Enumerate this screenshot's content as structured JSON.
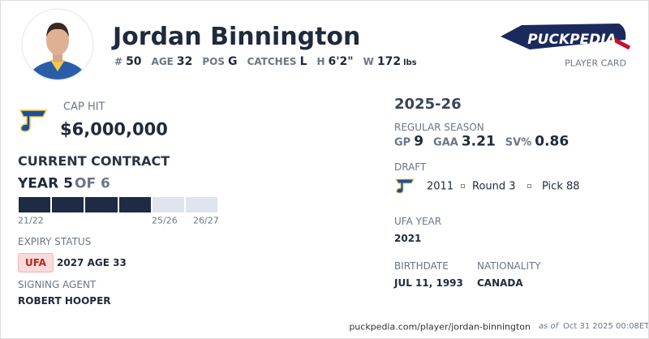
{
  "header": {
    "name": "Jordan Binnington",
    "stats": [
      {
        "label": "#",
        "value": "50"
      },
      {
        "label": "AGE",
        "value": "32"
      },
      {
        "label": "POS",
        "value": "G"
      },
      {
        "label": "CATCHES",
        "value": "L"
      },
      {
        "label": "H",
        "value": "6'2\""
      },
      {
        "label": "W",
        "value": "172",
        "unit": "lbs"
      }
    ]
  },
  "logo": {
    "text": "PUCKPEDIA",
    "subtitle": "PLAYER CARD"
  },
  "cap_hit": {
    "label": "CAP HIT",
    "value": "$6,000,000"
  },
  "contract": {
    "title": "CURRENT CONTRACT",
    "year": "YEAR 5",
    "of": "OF 6",
    "seasons": [
      "21/22",
      "25/26",
      "26/27"
    ],
    "expiry_label": "EXPIRY STATUS",
    "expiry_badge": "UFA",
    "expiry_detail": "2027 AGE 33",
    "agent_label": "SIGNING AGENT",
    "agent": "ROBERT HOOPER"
  },
  "season": {
    "title": "2025-26",
    "label": "REGULAR SEASON",
    "stats": [
      {
        "label": "GP",
        "value": "9"
      },
      {
        "label": "GAA",
        "value": "3.21"
      },
      {
        "label": "SV%",
        "value": "0.86"
      }
    ]
  },
  "draft": {
    "label": "DRAFT",
    "year": "2011",
    "round": "Round 3",
    "pick": "Pick 88"
  },
  "ufa": {
    "label": "UFA YEAR",
    "value": "2021"
  },
  "birth": {
    "label": "BIRTHDATE",
    "value": "JUL 11, 1993"
  },
  "nationality": {
    "label": "NATIONALITY",
    "value": "CANADA"
  },
  "footer": {
    "url": "puckpedia.com/player/jordan-binnington",
    "as_of": "as of",
    "date": "Oct 31 2025 00:08ET"
  }
}
